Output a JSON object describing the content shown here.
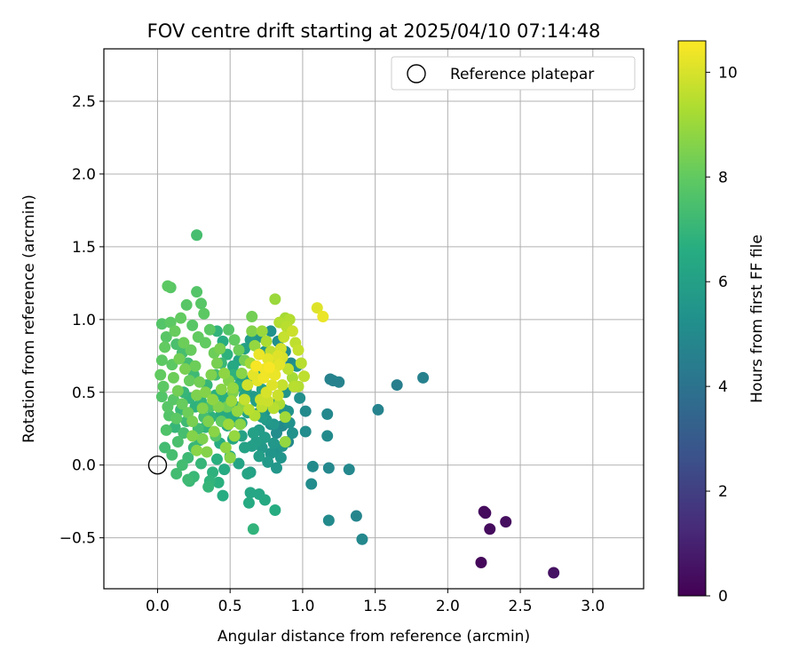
{
  "chart_data": {
    "type": "scatter",
    "title": "FOV centre drift starting at 2025/04/10 07:14:48",
    "xlabel": "Angular distance from reference (arcmin)",
    "ylabel": "Rotation from reference (arcmin)",
    "xlim": [
      -0.37,
      3.35
    ],
    "ylim": [
      -0.85,
      2.86
    ],
    "xticks": [
      0.0,
      0.5,
      1.0,
      1.5,
      2.0,
      2.5,
      3.0
    ],
    "xtick_labels": [
      "0.0",
      "0.5",
      "1.0",
      "1.5",
      "2.0",
      "2.5",
      "3.0"
    ],
    "yticks": [
      -0.5,
      0.0,
      0.5,
      1.0,
      1.5,
      2.0,
      2.5
    ],
    "ytick_labels": [
      "−0.5",
      "0.0",
      "0.5",
      "1.0",
      "1.5",
      "2.0",
      "2.5"
    ],
    "grid": true,
    "colormap": "viridis",
    "colorbar": {
      "label": "Hours from first FF file",
      "range": [
        0,
        10.6
      ],
      "ticks": [
        0,
        2,
        4,
        6,
        8,
        10
      ],
      "tick_labels": [
        "0",
        "2",
        "4",
        "6",
        "8",
        "10"
      ]
    },
    "legend": {
      "placement": "top-right",
      "entries": [
        {
          "label": "Reference platepar",
          "marker": "open-circle",
          "color": "#000000"
        }
      ]
    },
    "reference_point": {
      "x": 0.0,
      "y": 0.0
    },
    "points": [
      [
        2.23,
        -0.67,
        0.2
      ],
      [
        2.25,
        -0.32,
        0.3
      ],
      [
        2.26,
        -0.33,
        0.3
      ],
      [
        2.29,
        -0.44,
        0.3
      ],
      [
        2.4,
        -0.39,
        0.4
      ],
      [
        2.73,
        -0.74,
        0.5
      ],
      [
        1.83,
        0.6,
        4.6
      ],
      [
        1.65,
        0.55,
        4.5
      ],
      [
        1.52,
        0.38,
        4.7
      ],
      [
        1.41,
        -0.51,
        4.9
      ],
      [
        1.37,
        -0.35,
        4.8
      ],
      [
        1.32,
        -0.03,
        4.9
      ],
      [
        1.25,
        0.57,
        4.7
      ],
      [
        1.21,
        0.58,
        4.7
      ],
      [
        1.19,
        0.59,
        4.6
      ],
      [
        1.18,
        -0.02,
        4.9
      ],
      [
        1.17,
        0.35,
        4.9
      ],
      [
        1.17,
        0.2,
        5.0
      ],
      [
        1.18,
        -0.38,
        5.0
      ],
      [
        1.07,
        -0.01,
        5.0
      ],
      [
        1.06,
        -0.13,
        5.1
      ],
      [
        1.02,
        0.37,
        5.0
      ],
      [
        1.02,
        0.23,
        5.1
      ],
      [
        0.98,
        0.46,
        5.2
      ],
      [
        0.96,
        0.68,
        5.3
      ],
      [
        0.93,
        0.22,
        5.3
      ],
      [
        0.9,
        0.37,
        5.4
      ],
      [
        0.88,
        0.5,
        5.5
      ],
      [
        0.86,
        0.13,
        5.5
      ],
      [
        0.82,
        -0.02,
        5.6
      ],
      [
        0.8,
        0.28,
        5.6
      ],
      [
        0.78,
        0.42,
        5.6
      ],
      [
        0.76,
        0.02,
        5.7
      ],
      [
        0.74,
        0.19,
        5.8
      ],
      [
        0.72,
        0.33,
        5.8
      ],
      [
        0.7,
        0.06,
        5.9
      ],
      [
        0.68,
        0.44,
        5.9
      ],
      [
        0.66,
        0.22,
        6.0
      ],
      [
        0.64,
        -0.05,
        6.0
      ],
      [
        0.62,
        0.36,
        6.1
      ],
      [
        0.6,
        0.12,
        6.1
      ],
      [
        0.58,
        0.29,
        6.2
      ],
      [
        0.56,
        0.01,
        6.2
      ],
      [
        0.54,
        0.4,
        6.3
      ],
      [
        0.52,
        0.18,
        6.3
      ],
      [
        0.5,
        0.06,
        6.4
      ],
      [
        0.48,
        0.27,
        6.4
      ],
      [
        0.46,
        -0.03,
        6.5
      ],
      [
        0.44,
        0.35,
        6.5
      ],
      [
        0.65,
        0.13,
        5.9
      ],
      [
        0.7,
        0.24,
        5.8
      ],
      [
        0.75,
        0.31,
        5.7
      ],
      [
        0.8,
        0.15,
        5.6
      ],
      [
        0.85,
        0.05,
        5.5
      ],
      [
        0.87,
        0.38,
        5.4
      ],
      [
        0.91,
        0.29,
        5.3
      ],
      [
        0.6,
        0.48,
        6.1
      ],
      [
        0.63,
        0.58,
        6.3
      ],
      [
        0.68,
        0.64,
        6.2
      ],
      [
        0.72,
        0.52,
        6.0
      ],
      [
        0.55,
        0.54,
        6.6
      ],
      [
        0.52,
        0.62,
        6.8
      ],
      [
        0.47,
        0.46,
        6.7
      ],
      [
        0.43,
        0.15,
        6.6
      ],
      [
        0.41,
        0.04,
        6.7
      ],
      [
        0.38,
        -0.05,
        6.8
      ],
      [
        0.42,
        -0.12,
        6.7
      ],
      [
        0.36,
        -0.11,
        6.9
      ],
      [
        0.35,
        -0.15,
        7.0
      ],
      [
        0.62,
        -0.06,
        6.2
      ],
      [
        0.64,
        -0.19,
        6.3
      ],
      [
        0.7,
        -0.2,
        6.3
      ],
      [
        0.74,
        -0.24,
        6.4
      ],
      [
        0.63,
        -0.26,
        6.5
      ],
      [
        0.81,
        -0.31,
        6.6
      ],
      [
        0.66,
        -0.44,
        6.9
      ],
      [
        0.45,
        -0.21,
        6.6
      ],
      [
        0.25,
        -0.08,
        7.1
      ],
      [
        0.21,
        -0.1,
        7.2
      ],
      [
        0.13,
        -0.06,
        7.3
      ],
      [
        0.22,
        -0.11,
        7.1
      ],
      [
        0.3,
        0.01,
        7.0
      ],
      [
        0.05,
        0.12,
        7.3
      ],
      [
        0.1,
        0.07,
        7.4
      ],
      [
        0.14,
        0.16,
        7.5
      ],
      [
        0.18,
        0.22,
        7.4
      ],
      [
        0.06,
        0.24,
        7.6
      ],
      [
        0.08,
        0.34,
        7.7
      ],
      [
        0.11,
        0.45,
        7.8
      ],
      [
        0.04,
        0.54,
        7.9
      ],
      [
        0.02,
        0.62,
        8.0
      ],
      [
        0.03,
        0.72,
        7.9
      ],
      [
        0.05,
        0.81,
        8.0
      ],
      [
        0.06,
        0.88,
        7.8
      ],
      [
        0.03,
        0.97,
        7.7
      ],
      [
        0.09,
        0.98,
        7.9
      ],
      [
        0.07,
        1.23,
        7.9
      ],
      [
        0.09,
        1.22,
        7.8
      ],
      [
        0.27,
        1.58,
        7.4
      ],
      [
        0.27,
        1.19,
        7.7
      ],
      [
        0.3,
        1.11,
        7.8
      ],
      [
        0.32,
        1.04,
        7.9
      ],
      [
        0.2,
        1.1,
        7.8
      ],
      [
        0.16,
        1.01,
        8.0
      ],
      [
        0.12,
        0.92,
        8.1
      ],
      [
        0.18,
        0.84,
        8.2
      ],
      [
        0.23,
        0.79,
        8.1
      ],
      [
        0.15,
        0.73,
        8.3
      ],
      [
        0.19,
        0.66,
        8.4
      ],
      [
        0.11,
        0.6,
        8.2
      ],
      [
        0.14,
        0.51,
        8.3
      ],
      [
        0.17,
        0.42,
        8.1
      ],
      [
        0.21,
        0.36,
        8.2
      ],
      [
        0.24,
        0.3,
        8.4
      ],
      [
        0.27,
        0.48,
        8.5
      ],
      [
        0.29,
        0.57,
        8.3
      ],
      [
        0.26,
        0.68,
        8.2
      ],
      [
        0.28,
        0.88,
        8.0
      ],
      [
        0.24,
        0.96,
        7.8
      ],
      [
        0.13,
        0.32,
        7.9
      ],
      [
        0.07,
        0.4,
        7.8
      ],
      [
        0.03,
        0.47,
        7.7
      ],
      [
        0.1,
        0.69,
        7.9
      ],
      [
        0.22,
        0.58,
        8.1
      ],
      [
        0.33,
        0.84,
        8.0
      ],
      [
        0.36,
        0.93,
        7.9
      ],
      [
        0.39,
        0.77,
        8.2
      ],
      [
        0.41,
        0.7,
        8.4
      ],
      [
        0.37,
        0.62,
        8.5
      ],
      [
        0.33,
        0.5,
        8.6
      ],
      [
        0.31,
        0.39,
        8.6
      ],
      [
        0.35,
        0.3,
        8.5
      ],
      [
        0.39,
        0.23,
        8.7
      ],
      [
        0.31,
        0.18,
        8.5
      ],
      [
        0.34,
        0.09,
        8.6
      ],
      [
        0.27,
        0.1,
        8.7
      ],
      [
        0.24,
        0.2,
        8.6
      ],
      [
        0.44,
        0.52,
        8.7
      ],
      [
        0.46,
        0.63,
        8.8
      ],
      [
        0.49,
        0.58,
        8.6
      ],
      [
        0.43,
        0.8,
        8.4
      ],
      [
        0.49,
        0.93,
        7.7
      ],
      [
        0.53,
        0.86,
        8.0
      ],
      [
        0.56,
        0.79,
        8.2
      ],
      [
        0.6,
        0.72,
        8.4
      ],
      [
        0.58,
        0.63,
        8.7
      ],
      [
        0.52,
        0.53,
        8.9
      ],
      [
        0.51,
        0.44,
        9.0
      ],
      [
        0.55,
        0.37,
        8.9
      ],
      [
        0.59,
        0.41,
        8.8
      ],
      [
        0.57,
        0.28,
        8.7
      ],
      [
        0.53,
        0.2,
        8.9
      ],
      [
        0.49,
        0.28,
        9.0
      ],
      [
        0.47,
        0.12,
        8.8
      ],
      [
        0.5,
        0.05,
        8.7
      ],
      [
        0.42,
        0.4,
        8.6
      ],
      [
        0.38,
        0.45,
        8.8
      ],
      [
        0.64,
        0.7,
        9.1
      ],
      [
        0.67,
        0.82,
        8.9
      ],
      [
        0.65,
        0.92,
        8.6
      ],
      [
        0.65,
        1.02,
        8.3
      ],
      [
        0.72,
        0.92,
        9.0
      ],
      [
        0.75,
        0.85,
        9.3
      ],
      [
        0.78,
        0.78,
        9.6
      ],
      [
        0.8,
        0.72,
        9.8
      ],
      [
        0.82,
        0.68,
        10.0
      ],
      [
        0.76,
        0.73,
        10.2
      ],
      [
        0.74,
        0.66,
        10.4
      ],
      [
        0.79,
        0.63,
        10.3
      ],
      [
        0.83,
        0.75,
        10.1
      ],
      [
        0.85,
        0.8,
        9.9
      ],
      [
        0.87,
        0.88,
        9.7
      ],
      [
        0.89,
        0.95,
        9.5
      ],
      [
        0.91,
        1.0,
        9.4
      ],
      [
        0.93,
        0.92,
        9.8
      ],
      [
        0.95,
        0.84,
        9.6
      ],
      [
        0.97,
        0.79,
        9.7
      ],
      [
        0.99,
        0.7,
        9.5
      ],
      [
        1.01,
        0.61,
        9.6
      ],
      [
        0.97,
        0.54,
        9.4
      ],
      [
        0.93,
        0.6,
        9.2
      ],
      [
        0.9,
        0.66,
        9.6
      ],
      [
        0.86,
        0.55,
        9.7
      ],
      [
        0.83,
        0.48,
        9.8
      ],
      [
        0.79,
        0.55,
        10.1
      ],
      [
        0.75,
        0.5,
        10.0
      ],
      [
        0.71,
        0.45,
        9.8
      ],
      [
        0.69,
        0.58,
        10.2
      ],
      [
        0.73,
        0.6,
        10.4
      ],
      [
        0.77,
        0.67,
        10.5
      ],
      [
        0.81,
        0.62,
        10.3
      ],
      [
        0.84,
        0.69,
        10.2
      ],
      [
        0.86,
        0.74,
        10.0
      ],
      [
        0.7,
        0.76,
        10.3
      ],
      [
        0.68,
        0.68,
        10.5
      ],
      [
        0.66,
        0.62,
        10.2
      ],
      [
        0.62,
        0.55,
        9.9
      ],
      [
        0.6,
        0.45,
        9.7
      ],
      [
        0.63,
        0.38,
        9.5
      ],
      [
        0.67,
        0.34,
        9.4
      ],
      [
        0.72,
        0.4,
        9.6
      ],
      [
        0.76,
        0.44,
        9.8
      ],
      [
        0.8,
        0.39,
        9.5
      ],
      [
        0.84,
        0.42,
        9.3
      ],
      [
        0.88,
        0.33,
        9.1
      ],
      [
        0.88,
        0.16,
        8.9
      ],
      [
        1.1,
        1.08,
        10.1
      ],
      [
        1.14,
        1.02,
        10.3
      ],
      [
        0.81,
        1.14,
        9.0
      ],
      [
        0.84,
        0.98,
        9.4
      ],
      [
        0.88,
        1.01,
        9.2
      ],
      [
        0.94,
        0.54,
        9.5
      ],
      [
        0.52,
        0.5,
        8.5
      ],
      [
        0.48,
        0.4,
        8.3
      ],
      [
        0.44,
        0.3,
        8.0
      ],
      [
        0.4,
        0.2,
        7.7
      ],
      [
        0.36,
        0.4,
        7.6
      ],
      [
        0.32,
        0.33,
        7.4
      ],
      [
        0.28,
        0.25,
        7.3
      ],
      [
        0.2,
        0.3,
        7.2
      ],
      [
        0.16,
        0.38,
        7.1
      ],
      [
        0.12,
        0.26,
        7.0
      ],
      [
        0.18,
        0.5,
        7.0
      ],
      [
        0.22,
        0.46,
        6.9
      ],
      [
        0.26,
        0.4,
        6.8
      ],
      [
        0.3,
        0.44,
        6.9
      ],
      [
        0.34,
        0.55,
        7.0
      ],
      [
        0.25,
        0.62,
        7.2
      ],
      [
        0.21,
        0.7,
        7.3
      ],
      [
        0.17,
        0.77,
        7.4
      ],
      [
        0.13,
        0.83,
        7.5
      ],
      [
        0.4,
        0.62,
        7.3
      ],
      [
        0.44,
        0.7,
        7.1
      ],
      [
        0.48,
        0.76,
        6.8
      ],
      [
        0.45,
        0.85,
        6.6
      ],
      [
        0.41,
        0.92,
        6.9
      ],
      [
        0.52,
        0.68,
        6.4
      ],
      [
        0.56,
        0.72,
        6.2
      ],
      [
        0.6,
        0.8,
        6.0
      ],
      [
        0.64,
        0.86,
        5.8
      ],
      [
        0.7,
        0.88,
        5.6
      ],
      [
        0.74,
        0.78,
        5.5
      ],
      [
        0.78,
        0.92,
        5.3
      ],
      [
        0.83,
        0.85,
        5.2
      ],
      [
        0.88,
        0.78,
        5.1
      ],
      [
        0.92,
        0.7,
        5.0
      ],
      [
        0.57,
        0.6,
        6.0
      ],
      [
        0.61,
        0.52,
        5.9
      ],
      [
        0.66,
        0.47,
        5.7
      ],
      [
        0.7,
        0.36,
        5.5
      ],
      [
        0.74,
        0.37,
        5.4
      ],
      [
        0.78,
        0.28,
        5.2
      ],
      [
        0.82,
        0.22,
        5.1
      ],
      [
        0.86,
        0.27,
        5.0
      ],
      [
        0.9,
        0.16,
        4.9
      ],
      [
        0.82,
        0.1,
        5.3
      ],
      [
        0.78,
        0.08,
        5.5
      ],
      [
        0.72,
        0.12,
        5.7
      ],
      [
        0.68,
        0.16,
        5.9
      ],
      [
        0.58,
        0.2,
        6.1
      ],
      [
        0.54,
        0.3,
        6.3
      ],
      [
        0.5,
        0.35,
        6.5
      ],
      [
        0.46,
        0.43,
        6.6
      ],
      [
        0.4,
        0.48,
        6.7
      ],
      [
        0.37,
        0.33,
        6.8
      ],
      [
        0.33,
        0.26,
        6.9
      ],
      [
        0.29,
        0.17,
        7.0
      ],
      [
        0.25,
        0.12,
        7.1
      ],
      [
        0.21,
        0.05,
        7.2
      ],
      [
        0.17,
        0.0,
        7.3
      ]
    ]
  }
}
